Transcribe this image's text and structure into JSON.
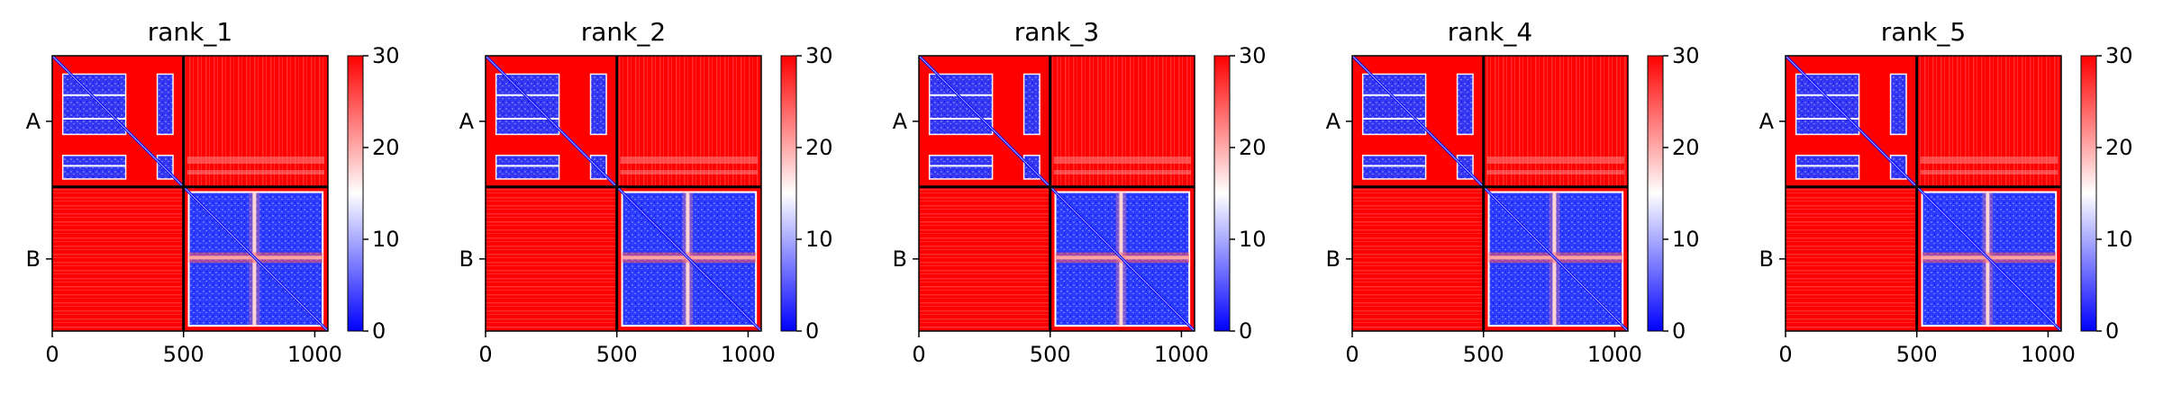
{
  "chart_data": [
    {
      "type": "heatmap",
      "title": "rank_1",
      "xlabel": "",
      "ylabel": "",
      "xlim": [
        0,
        1050
      ],
      "ylim": [
        1050,
        0
      ],
      "x_ticks": [
        "0",
        "500",
        "1000"
      ],
      "y_ticks": [
        "A",
        "B"
      ],
      "chains": [
        {
          "name": "A",
          "range": [
            0,
            500
          ]
        },
        {
          "name": "B",
          "range": [
            500,
            1050
          ]
        }
      ],
      "colorbar": {
        "min": 0,
        "max": 30,
        "ticks": [
          "0",
          "10",
          "20",
          "30"
        ],
        "colormap": "bwr"
      }
    },
    {
      "type": "heatmap",
      "title": "rank_2",
      "xlabel": "",
      "ylabel": "",
      "xlim": [
        0,
        1050
      ],
      "ylim": [
        1050,
        0
      ],
      "x_ticks": [
        "0",
        "500",
        "1000"
      ],
      "y_ticks": [
        "A",
        "B"
      ],
      "chains": [
        {
          "name": "A",
          "range": [
            0,
            500
          ]
        },
        {
          "name": "B",
          "range": [
            500,
            1050
          ]
        }
      ],
      "colorbar": {
        "min": 0,
        "max": 30,
        "ticks": [
          "0",
          "10",
          "20",
          "30"
        ],
        "colormap": "bwr"
      }
    },
    {
      "type": "heatmap",
      "title": "rank_3",
      "xlabel": "",
      "ylabel": "",
      "xlim": [
        0,
        1050
      ],
      "ylim": [
        1050,
        0
      ],
      "x_ticks": [
        "0",
        "500",
        "1000"
      ],
      "y_ticks": [
        "A",
        "B"
      ],
      "chains": [
        {
          "name": "A",
          "range": [
            0,
            500
          ]
        },
        {
          "name": "B",
          "range": [
            500,
            1050
          ]
        }
      ],
      "colorbar": {
        "min": 0,
        "max": 30,
        "ticks": [
          "0",
          "10",
          "20",
          "30"
        ],
        "colormap": "bwr"
      }
    },
    {
      "type": "heatmap",
      "title": "rank_4",
      "xlabel": "",
      "ylabel": "",
      "xlim": [
        0,
        1050
      ],
      "ylim": [
        1050,
        0
      ],
      "x_ticks": [
        "0",
        "500",
        "1000"
      ],
      "y_ticks": [
        "A",
        "B"
      ],
      "chains": [
        {
          "name": "A",
          "range": [
            0,
            500
          ]
        },
        {
          "name": "B",
          "range": [
            500,
            1050
          ]
        }
      ],
      "colorbar": {
        "min": 0,
        "max": 30,
        "ticks": [
          "0",
          "10",
          "20",
          "30"
        ],
        "colormap": "bwr"
      }
    },
    {
      "type": "heatmap",
      "title": "rank_5",
      "xlabel": "",
      "ylabel": "",
      "xlim": [
        0,
        1050
      ],
      "ylim": [
        1050,
        0
      ],
      "x_ticks": [
        "0",
        "500",
        "1000"
      ],
      "y_ticks": [
        "A",
        "B"
      ],
      "chains": [
        {
          "name": "A",
          "range": [
            0,
            500
          ]
        },
        {
          "name": "B",
          "range": [
            500,
            1050
          ]
        }
      ],
      "colorbar": {
        "min": 0,
        "max": 30,
        "ticks": [
          "0",
          "10",
          "20",
          "30"
        ],
        "colormap": "bwr"
      }
    }
  ],
  "colors": {
    "high": "#ff0000",
    "mid": "#ffffff",
    "low": "#0000ff",
    "frame": "#000000"
  }
}
